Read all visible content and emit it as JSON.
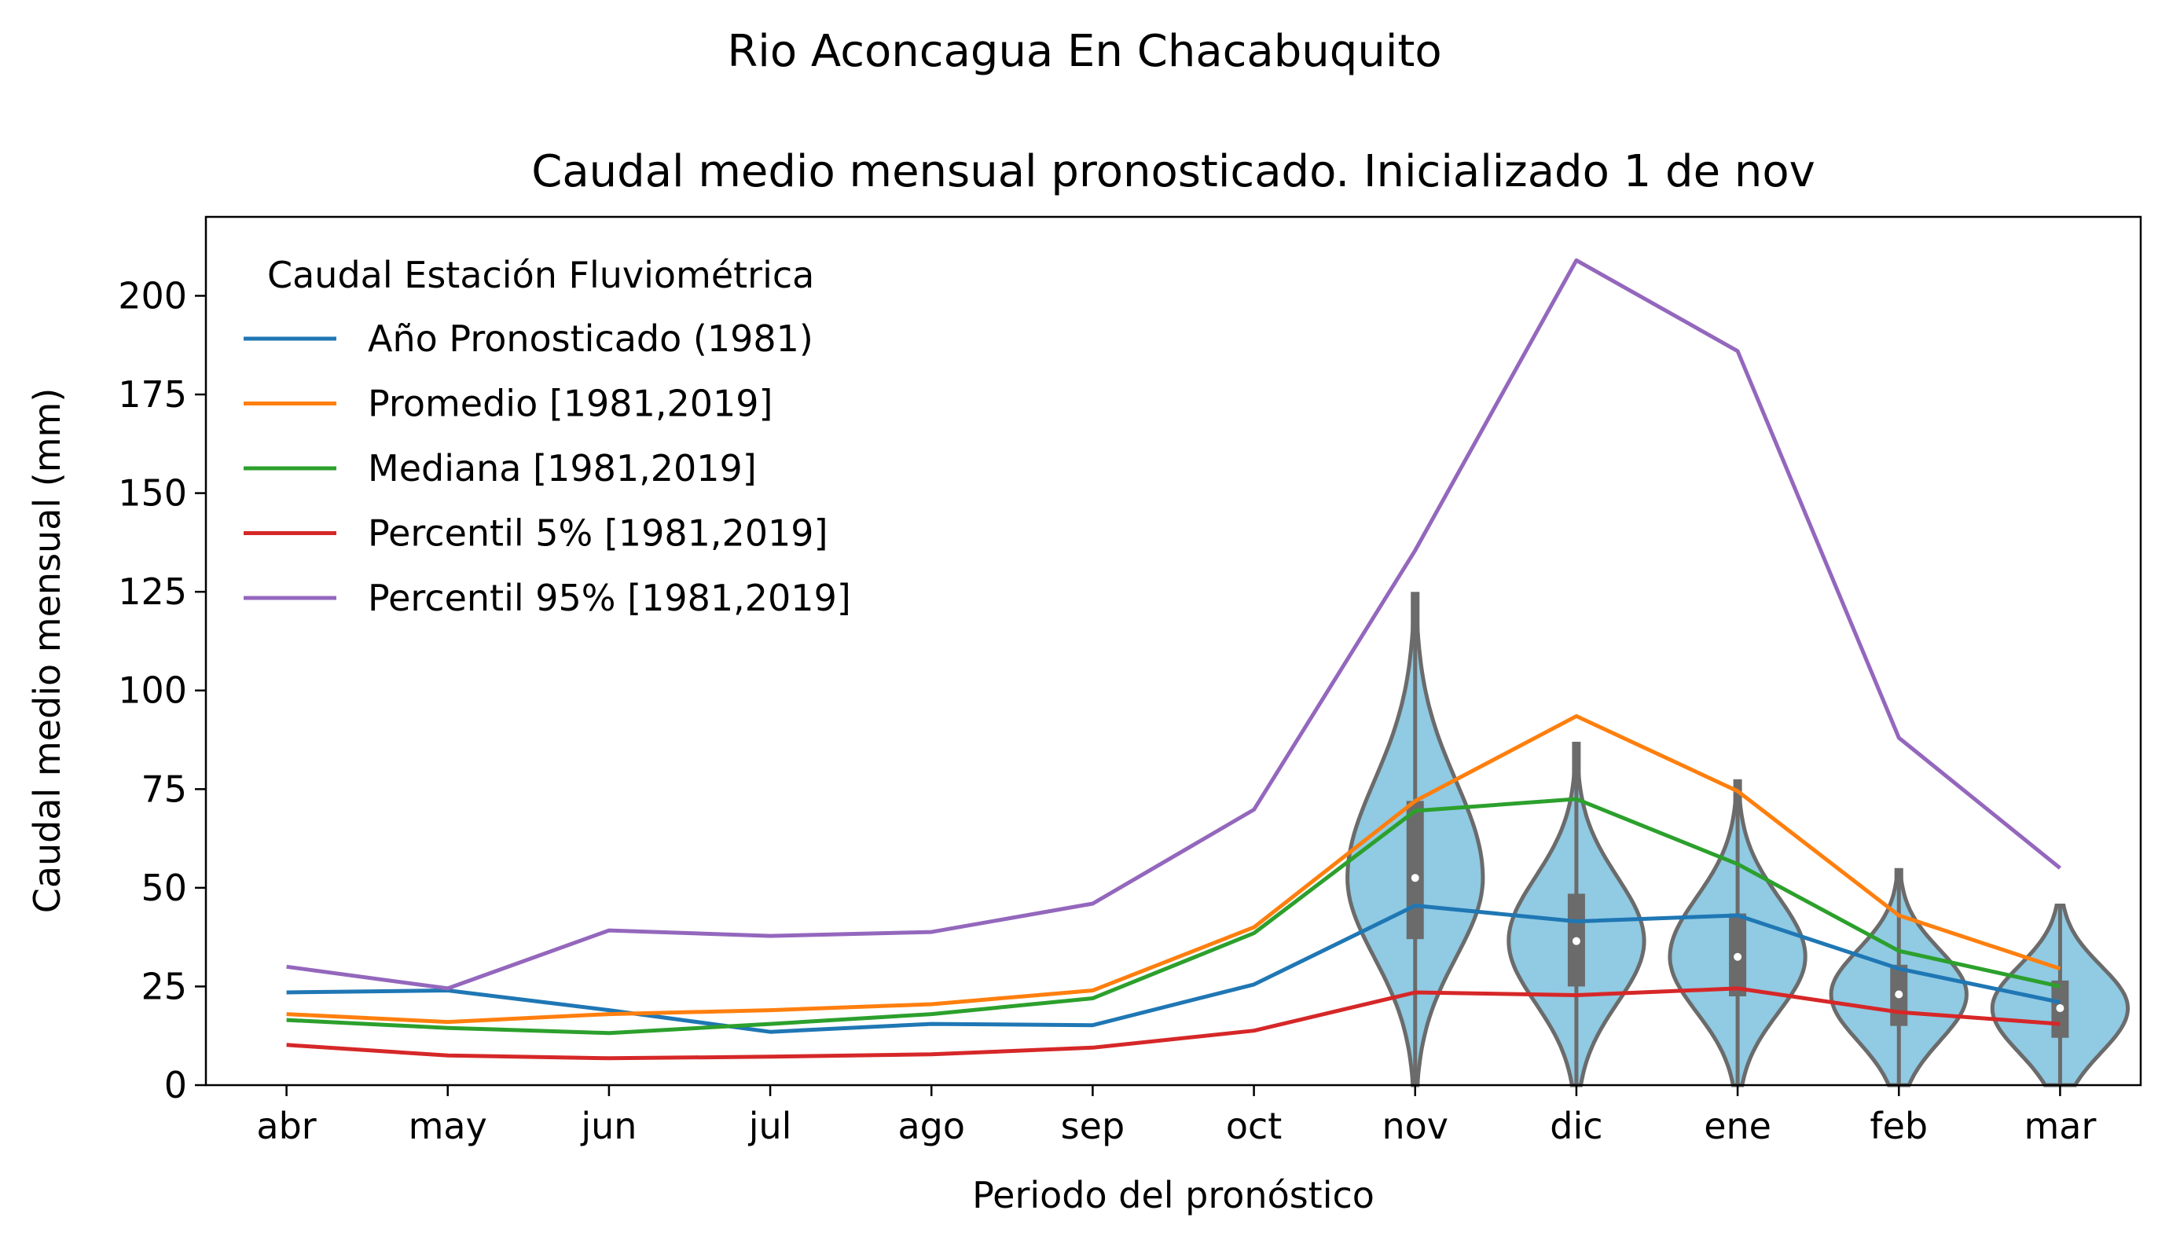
{
  "figure": {
    "suptitle": "Rio Aconcagua En Chacabuquito"
  },
  "chart_data": {
    "type": "line",
    "title": "Caudal medio mensual pronosticado. Inicializado 1 de nov",
    "xlabel": "Periodo del pronóstico",
    "ylabel": "Caudal medio mensual (mm)",
    "ylim": [
      0,
      220
    ],
    "yticks": [
      0,
      25,
      50,
      75,
      100,
      125,
      150,
      175,
      200
    ],
    "grid": false,
    "legend_position": "top-left",
    "legend_title": "Caudal Estación Fluviométrica",
    "categories": [
      "abr",
      "may",
      "jun",
      "jul",
      "ago",
      "sep",
      "oct",
      "nov",
      "dic",
      "ene",
      "feb",
      "mar"
    ],
    "series": [
      {
        "name": "Año Pronosticado (1981)",
        "color": "#1f77b4",
        "values": [
          23.5,
          24,
          19,
          13.5,
          15.5,
          15.2,
          25.5,
          45.5,
          41.5,
          43,
          29.5,
          21
        ]
      },
      {
        "name": "Promedio [1981,2019]",
        "color": "#ff7f0e",
        "values": [
          18,
          16,
          18,
          19,
          20.5,
          24,
          40,
          72,
          93.5,
          74.5,
          43,
          29.5
        ]
      },
      {
        "name": "Mediana [1981,2019]",
        "color": "#2ca02c",
        "values": [
          16.5,
          14.5,
          13.2,
          15.5,
          18,
          22,
          38.5,
          69.5,
          72.5,
          56,
          34,
          25
        ]
      },
      {
        "name": "Percentil 5% [1981,2019]",
        "color": "#d62728",
        "values": [
          10.2,
          7.5,
          6.8,
          7.2,
          7.8,
          9.5,
          13.8,
          23.5,
          22.8,
          24.5,
          18.5,
          15.5
        ]
      },
      {
        "name": "Percentil 95% [1981,2019]",
        "color": "#9467bd",
        "values": [
          30,
          24.5,
          39.2,
          37.8,
          38.8,
          46,
          69.8,
          135.5,
          209,
          186,
          88,
          55
        ]
      }
    ],
    "violins": {
      "color": "#90cae3",
      "edge_color": "#6b6b6b",
      "items": [
        {
          "category": "nov",
          "min": 0,
          "q1": 37,
          "median": 52.5,
          "q3": 72,
          "max": 124.5
        },
        {
          "category": "dic",
          "min": 0,
          "q1": 25,
          "median": 36.5,
          "q3": 48.5,
          "max": 86.5
        },
        {
          "category": "ene",
          "min": 0,
          "q1": 22.5,
          "median": 32.5,
          "q3": 43.5,
          "max": 77
        },
        {
          "category": "feb",
          "min": 0,
          "q1": 15,
          "median": 23,
          "q3": 30.5,
          "max": 54.5
        },
        {
          "category": "mar",
          "min": 0,
          "q1": 12,
          "median": 19.5,
          "q3": 26.5,
          "max": 45.5
        }
      ]
    }
  }
}
